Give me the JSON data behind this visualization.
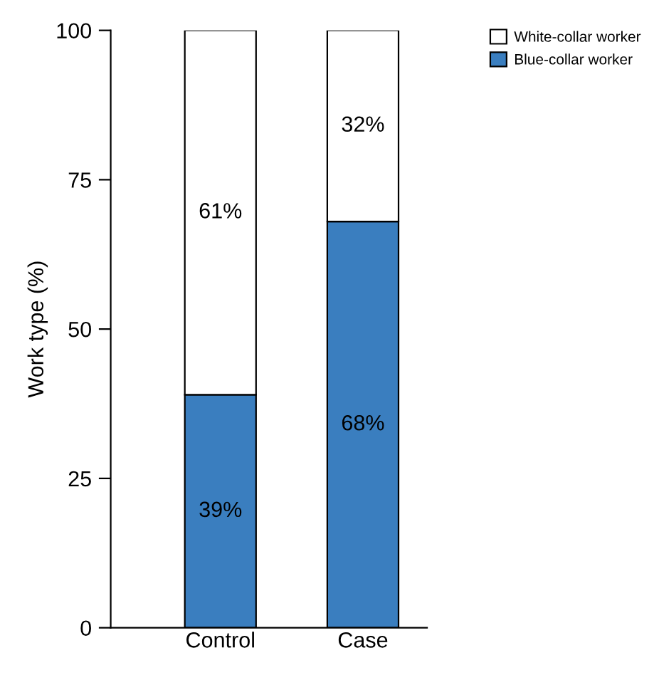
{
  "chart_data": {
    "type": "bar",
    "stacked": true,
    "ylabel": "Work type (%)",
    "categories": [
      "Control",
      "Case"
    ],
    "series": [
      {
        "name": "Blue-collar worker",
        "color": "#3a7ebf",
        "values": [
          39,
          68
        ],
        "value_labels": [
          "39%",
          "68%"
        ]
      },
      {
        "name": "White-collar worker",
        "color": "#ffffff",
        "values": [
          61,
          32
        ],
        "value_labels": [
          "61%",
          "32%"
        ]
      }
    ],
    "ylim": [
      0,
      100
    ],
    "yticks": [
      0,
      25,
      50,
      75,
      100
    ],
    "grid": false,
    "legend": "top right"
  }
}
